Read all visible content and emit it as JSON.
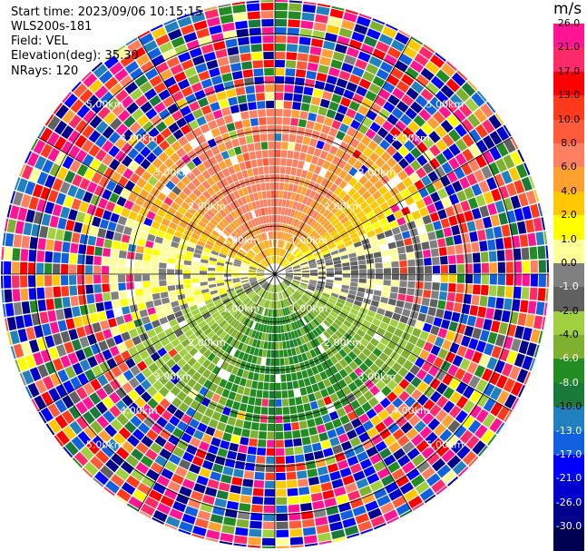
{
  "info": {
    "start_time": "Start time: 2023/09/06 10:15:15",
    "site": "WLS200s-181",
    "field": "Field: VEL",
    "elevation": "Elevation(deg): 35.30",
    "nrays": "NRays: 120"
  },
  "colorbar": {
    "title": "m/s",
    "levels": [
      "26.0",
      "21.0",
      "17.0",
      "13.0",
      "10.0",
      "8.0",
      "6.0",
      "4.0",
      "2.0",
      "1.0",
      "0.0",
      "-1.0",
      "-2.0",
      "-4.0",
      "-6.0",
      "-8.0",
      "-10.0",
      "-13.0",
      "-17.0",
      "-21.0",
      "-26.0",
      "-30.0"
    ],
    "colors": [
      "#ff1493",
      "#ff2a6a",
      "#ff0000",
      "#ff3a1a",
      "#ff5a3a",
      "#ff8060",
      "#ffa030",
      "#ffc800",
      "#ffff00",
      "#ffff99",
      "#808080",
      "#606060",
      "#a0d040",
      "#80b030",
      "#228b22",
      "#1a7a3a",
      "#2080c0",
      "#1060e0",
      "#0000ff",
      "#0000cc",
      "#00008b",
      "#000050"
    ]
  },
  "chart_data": {
    "type": "ppi",
    "title": "",
    "field": "VEL",
    "units": "m/s",
    "n_rays": 120,
    "elevation_deg": 35.3,
    "range_rings_km": [
      1.0,
      2.0,
      3.0,
      4.0,
      5.0
    ],
    "ring_labels": [
      "1.00km",
      "2.00km",
      "3.00km",
      "4.00km",
      "5.00km"
    ],
    "grid_angles_deg": [
      0,
      30,
      60,
      90,
      120,
      150,
      180,
      210,
      240,
      270,
      300,
      330
    ],
    "max_range_km": 5.7,
    "velocity_pattern": [
      {
        "sector": "north",
        "approx_velocity_ms": 8.0,
        "range_km": [
          1.0,
          3.3
        ]
      },
      {
        "sector": "north-near",
        "approx_velocity_ms": 2.0,
        "range_km": [
          0.3,
          1.2
        ]
      },
      {
        "sector": "west",
        "approx_velocity_ms": 0.0,
        "range_km": [
          0.5,
          3.5
        ]
      },
      {
        "sector": "east",
        "approx_velocity_ms": -1.0,
        "range_km": [
          0.5,
          3.5
        ]
      },
      {
        "sector": "south",
        "approx_velocity_ms": -6.0,
        "range_km": [
          1.0,
          3.5
        ]
      },
      {
        "sector": "far-field",
        "note": "noise",
        "range_km": [
          3.5,
          5.7
        ]
      }
    ]
  }
}
